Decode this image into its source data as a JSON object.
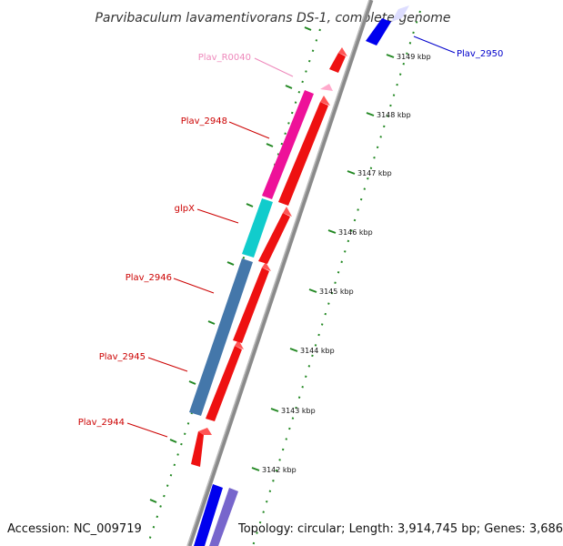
{
  "title": "Parvibaculum lavamentivorans DS-1, complete genome",
  "accession": "Accession: NC_009719",
  "topology": "Topology: circular; Length: 3,914,745 bp; Genes: 3,686",
  "colors": {
    "backbone": "#808080",
    "forward_gene": "#0000ff",
    "reverse_gene": "#ff0000",
    "rna": "#ff88cc",
    "tick": "#228822",
    "label_red": "#cc0000",
    "label_blue": "#0000cc",
    "label_pink": "#ee88bb",
    "magenta": "#ee1199",
    "cyan": "#11cccc",
    "steelblue": "#4477aa",
    "lightblue": "#7766cc",
    "forward_light": "#ddddff"
  },
  "ruler": [
    {
      "label": "3142 kbp"
    },
    {
      "label": "3143 kbp"
    },
    {
      "label": "3144 kbp"
    },
    {
      "label": "3145 kbp"
    },
    {
      "label": "3146 kbp"
    },
    {
      "label": "3147 kbp"
    },
    {
      "label": "3148 kbp"
    },
    {
      "label": "3149 kbp"
    }
  ],
  "gene_labels": [
    {
      "name": "Plav_2950",
      "color": "blue"
    },
    {
      "name": "Plav_R0040",
      "color": "pink"
    },
    {
      "name": "Plav_2948",
      "color": "red"
    },
    {
      "name": "glpX",
      "color": "red"
    },
    {
      "name": "Plav_2946",
      "color": "red"
    },
    {
      "name": "Plav_2945",
      "color": "red"
    },
    {
      "name": "Plav_2944",
      "color": "red"
    }
  ]
}
